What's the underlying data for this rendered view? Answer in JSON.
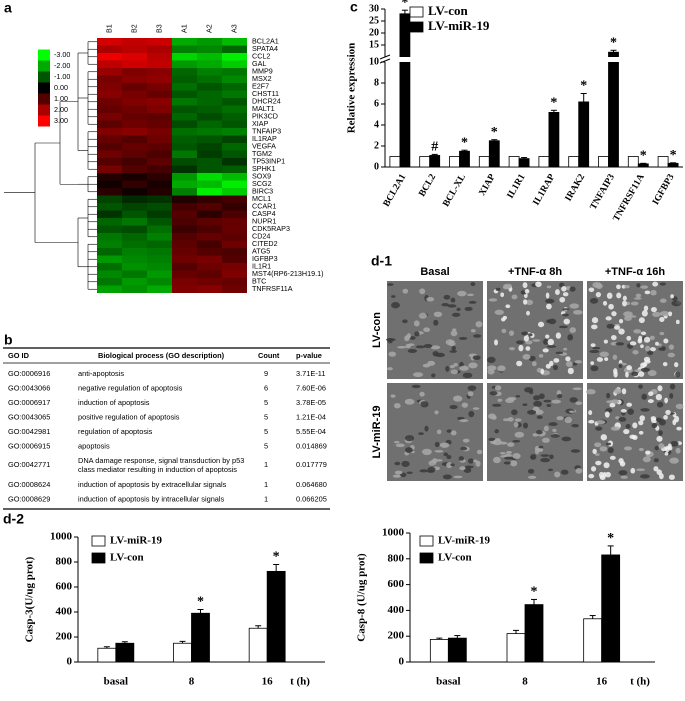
{
  "chart_data": [
    {
      "panel": "a",
      "type": "heatmap",
      "columns": [
        "B1",
        "B2",
        "B3",
        "A1",
        "A2",
        "A3"
      ],
      "rows": [
        "BCL2A1",
        "SPATA4",
        "CCL2",
        "GAL",
        "MMP9",
        "MSX2",
        "E2F7",
        "CHST11",
        "DHCR24",
        "MALT1",
        "PIK3CD",
        "XIAP",
        "TNFAIP3",
        "IL1RAP",
        "VEGFA",
        "TGM2",
        "TP53INP1",
        "SPHK1",
        "SOX9",
        "SCG2",
        "BIRC3",
        "MCL1",
        "CCAR1",
        "CASP4",
        "NUPR1",
        "CDK5RAP3",
        "CD24",
        "CITED2",
        "ATG5",
        "IGFBP3",
        "IL1R1",
        "MST4(RP6-213H19.1)",
        "BTC",
        "TNFRSF11A"
      ],
      "values": [
        [
          2.5,
          2.3,
          2.4,
          -2,
          -1.8,
          -2.2
        ],
        [
          2,
          2.2,
          2,
          -1.5,
          -1.6,
          -1.2
        ],
        [
          2.8,
          2.6,
          2.2,
          -2.5,
          -2.2,
          -2.8
        ],
        [
          2.2,
          2.4,
          2.3,
          -1.8,
          -2,
          -2.4
        ],
        [
          1.8,
          1.5,
          1.6,
          -1.2,
          -1.5,
          -1.4
        ],
        [
          1.4,
          1.6,
          1.7,
          -1.1,
          -1.3,
          -1.6
        ],
        [
          1.5,
          1.2,
          1.4,
          -1.3,
          -1,
          -1.2
        ],
        [
          1.6,
          1.4,
          1.2,
          -1,
          -1.2,
          -1.4
        ],
        [
          1.3,
          1.5,
          1.6,
          -1.4,
          -1.2,
          -1
        ],
        [
          1.2,
          1.3,
          1.5,
          -1,
          -1.1,
          -1.3
        ],
        [
          1.4,
          1.2,
          1.1,
          -1.2,
          -0.9,
          -1.1
        ],
        [
          1.1,
          1.3,
          1.2,
          -0.9,
          -1.2,
          -1
        ],
        [
          1.5,
          1.6,
          1.4,
          -1.3,
          -1.4,
          -1.5
        ],
        [
          1.2,
          1,
          1.3,
          -1.1,
          -1,
          -0.8
        ],
        [
          1,
          1.2,
          1.1,
          -1,
          -0.8,
          -1.2
        ],
        [
          1.3,
          1.1,
          0.9,
          -1.4,
          -0.7,
          -1
        ],
        [
          1,
          0.8,
          1.1,
          -0.9,
          -1,
          -0.6
        ],
        [
          1.4,
          1,
          0.8,
          -0.6,
          -1,
          -1.1
        ],
        [
          0.4,
          0.3,
          0.5,
          -1.8,
          -2.6,
          -2.2
        ],
        [
          0.2,
          0.6,
          0.3,
          -2,
          -2.2,
          -2.8
        ],
        [
          0.5,
          0.2,
          0.4,
          -1.5,
          -2.8,
          -2.4
        ],
        [
          -0.8,
          -0.5,
          -0.6,
          0.4,
          0.6,
          0.8
        ],
        [
          -1,
          -0.8,
          -0.9,
          0.8,
          1,
          0.6
        ],
        [
          -0.6,
          -1,
          -0.7,
          1,
          0.5,
          0.9
        ],
        [
          -1.2,
          -1.4,
          -1,
          0.9,
          1.1,
          1.2
        ],
        [
          -1,
          -0.9,
          -1.3,
          0.7,
          0.9,
          1.2
        ],
        [
          -1.4,
          -1.2,
          -1.5,
          1,
          1.2,
          1.1
        ],
        [
          -1.5,
          -1.3,
          -1.2,
          1.1,
          0.8,
          1.3
        ],
        [
          -1.2,
          -1.5,
          -1.4,
          1.2,
          1,
          0.9
        ],
        [
          -1.8,
          -1.6,
          -1.5,
          1.3,
          1.4,
          1
        ],
        [
          -1.3,
          -1.7,
          -1.6,
          1,
          1.3,
          1.4
        ],
        [
          -1.6,
          -1.4,
          -1.8,
          1.2,
          1.1,
          1.5
        ],
        [
          -1.4,
          -1.8,
          -1.6,
          1.4,
          1.3,
          1.2
        ],
        [
          -1.9,
          -1.7,
          -2,
          1.5,
          1.6,
          1.3
        ]
      ],
      "colorscale": [
        "#00ff00",
        "#000000",
        "#ff0000"
      ],
      "colorbar_ticks": [
        {
          "value": -3,
          "label": "-3.00"
        },
        {
          "value": -2,
          "label": "-2.00"
        },
        {
          "value": -1,
          "label": "-1.00"
        },
        {
          "value": 0,
          "label": "0.00"
        },
        {
          "value": 1,
          "label": "1.00"
        },
        {
          "value": 2,
          "label": "2.00"
        },
        {
          "value": 3,
          "label": "3.00"
        }
      ]
    },
    {
      "panel": "c",
      "type": "bar",
      "ylabel": "Relative expression",
      "categories": [
        "BCL2A1",
        "BCL2",
        "BCL-XL",
        "XIAP",
        "IL1R1",
        "IL1RAP",
        "IRAK2",
        "TNFAIP3",
        "TNFRSF11A",
        "IGFBP3"
      ],
      "series": [
        {
          "name": "LV-con",
          "color": "#ffffff",
          "values": [
            1,
            1,
            1,
            1,
            1,
            1,
            1,
            1,
            1,
            1
          ]
        },
        {
          "name": "LV-miR-19",
          "color": "#000000",
          "values": [
            28,
            1.1,
            1.5,
            2.5,
            0.8,
            5.2,
            6.2,
            12,
            0.3,
            0.35
          ],
          "errors": [
            1.5,
            0.1,
            0.1,
            0.1,
            0.1,
            0.2,
            0.8,
            0.8,
            0.05,
            0.05
          ],
          "annotations": [
            "*",
            "#",
            "*",
            "*",
            null,
            "*",
            "*",
            "*",
            "*",
            "*"
          ]
        }
      ],
      "ylim": [
        0,
        30
      ],
      "ybreak": 10,
      "yticks": [
        0,
        2,
        4,
        6,
        8,
        10,
        15,
        20,
        25,
        30
      ]
    },
    {
      "panel": "d-2",
      "type": "bar",
      "ylabel": "Casp-3(U/ug prot)",
      "xlabel": "t (h)",
      "categories": [
        "basal",
        "8",
        "16"
      ],
      "series": [
        {
          "name": "LV-miR-19",
          "color": "#ffffff",
          "values": [
            110,
            150,
            270
          ],
          "errors": [
            12,
            15,
            20
          ]
        },
        {
          "name": "LV-con",
          "color": "#000000",
          "values": [
            150,
            390,
            725
          ],
          "errors": [
            12,
            30,
            55
          ],
          "annotations": [
            null,
            "*",
            "*"
          ]
        }
      ],
      "ylim": [
        0,
        1000
      ],
      "yticks": [
        0,
        200,
        400,
        600,
        800,
        1000
      ]
    },
    {
      "type": "bar",
      "ylabel": "Casp-8 (U/ug prot)",
      "xlabel": "t (h)",
      "categories": [
        "basal",
        "8",
        "16"
      ],
      "series": [
        {
          "name": "LV-miR-19",
          "color": "#ffffff",
          "values": [
            175,
            220,
            335
          ],
          "errors": [
            10,
            25,
            25
          ]
        },
        {
          "name": "LV-con",
          "color": "#000000",
          "values": [
            185,
            445,
            830
          ],
          "errors": [
            20,
            40,
            70
          ],
          "annotations": [
            null,
            "*",
            "*"
          ]
        }
      ],
      "ylim": [
        0,
        1000
      ],
      "yticks": [
        0,
        200,
        400,
        600,
        800,
        1000
      ]
    }
  ],
  "go_table": {
    "panel": "b",
    "header": [
      "GO ID",
      "Biological process (GO description)",
      "Count",
      "p-value"
    ],
    "rows": [
      [
        "GO:0006916",
        "anti-apoptosis",
        9,
        "3.71E-11"
      ],
      [
        "GO:0043066",
        "negative regulation of apoptosis",
        6,
        "7.60E-06"
      ],
      [
        "GO:0006917",
        "induction of apoptosis",
        5,
        "3.78E-05"
      ],
      [
        "GO:0043065",
        "positive regulation of apoptosis",
        5,
        "1.21E-04"
      ],
      [
        "GO:0042981",
        "regulation of apoptosis",
        5,
        "5.55E-04"
      ],
      [
        "GO:0006915",
        "apoptosis",
        5,
        "0.014869"
      ],
      [
        "GO:0042771",
        [
          "DNA damage response, signal transduction by p53",
          "class mediator resulting in induction of apoptosis"
        ],
        1,
        "0.017779"
      ],
      [
        "GO:0008624",
        "induction of apoptosis by extracellular signals",
        1,
        "0.064680"
      ],
      [
        "GO:0008629",
        "induction of apoptosis by intracellular signals",
        1,
        "0.066205"
      ]
    ]
  },
  "micrographs": {
    "panel": "d-1",
    "columns": [
      "Basal",
      "+TNF-α 8h",
      "+TNF-α 16h"
    ],
    "rows": [
      "LV-con",
      "LV-miR-19"
    ]
  }
}
